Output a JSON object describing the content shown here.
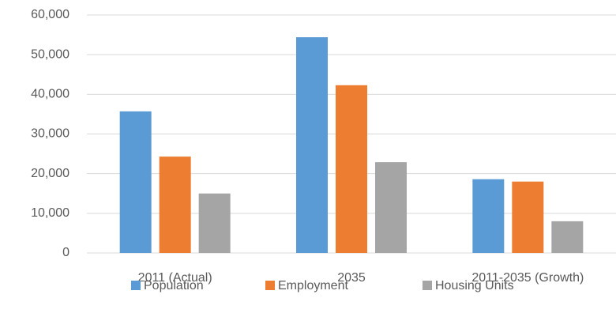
{
  "chart_data": {
    "type": "bar",
    "categories": [
      "2011 (Actual)",
      "2035",
      "2011-2035 (Growth)"
    ],
    "series": [
      {
        "name": "Population",
        "color": "#5b9bd5",
        "values": [
          35700,
          54400,
          18600
        ]
      },
      {
        "name": "Employment",
        "color": "#ed7d31",
        "values": [
          24300,
          42300,
          18000
        ]
      },
      {
        "name": "Housing Units",
        "color": "#a5a5a5",
        "values": [
          15000,
          22900,
          8000
        ]
      }
    ],
    "ylim": [
      0,
      60000
    ],
    "yticks": [
      0,
      {
        "value": 10000,
        "label": "10,000"
      },
      {
        "value": 20000,
        "label": "20,000"
      },
      {
        "value": 30000,
        "label": "30,000"
      },
      {
        "value": 40000,
        "label": "40,000"
      },
      {
        "value": 50000,
        "label": "50,000"
      },
      {
        "value": 60000,
        "label": "60,000"
      }
    ],
    "grid": true,
    "legend": "bottom"
  }
}
